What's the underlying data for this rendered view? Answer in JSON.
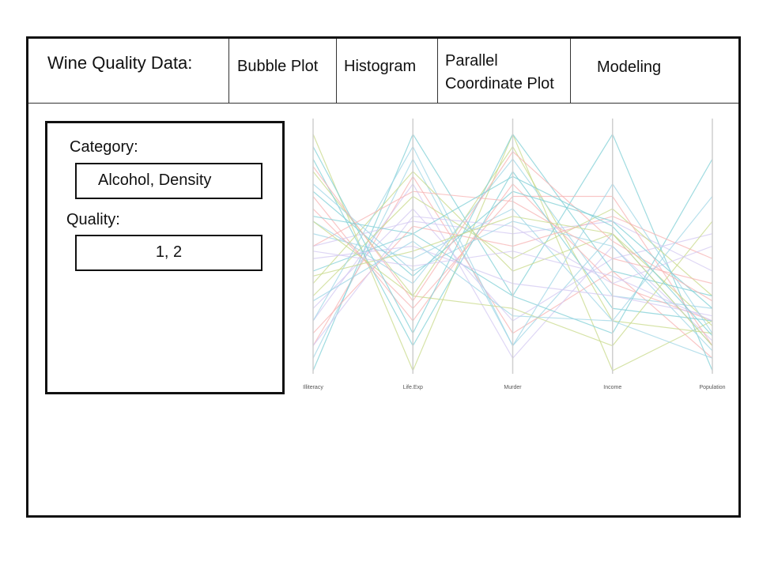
{
  "header": {
    "title": "Wine Quality Data:",
    "tabs": [
      {
        "label": "Bubble Plot"
      },
      {
        "label": "Histogram"
      },
      {
        "label": "Parallel Coordinate Plot"
      },
      {
        "label": "Modeling"
      }
    ]
  },
  "sidebar": {
    "category_label": "Category:",
    "category_value": "Alcohol, Density",
    "quality_label": "Quality:",
    "quality_value": "1, 2"
  },
  "chart_data": {
    "type": "line",
    "title": "",
    "axes": [
      "Illiteracy",
      "Life.Exp",
      "Murder",
      "Income",
      "Population"
    ],
    "value_range": [
      0,
      1
    ],
    "grid": false,
    "legend": "none",
    "colors": [
      "#c8d98a",
      "#9fd6e6",
      "#f7b3b3",
      "#d3c8f2",
      "#7fcfd6"
    ],
    "series": [
      {
        "values": [
          0.95,
          0.0,
          0.95,
          0.0,
          0.2
        ]
      },
      {
        "values": [
          0.05,
          0.85,
          0.1,
          0.55,
          0.1
        ]
      },
      {
        "values": [
          0.1,
          0.78,
          0.15,
          0.4,
          0.05
        ]
      },
      {
        "values": [
          0.2,
          0.75,
          0.05,
          0.5,
          0.12
        ]
      },
      {
        "values": [
          0.0,
          0.95,
          0.3,
          0.95,
          0.0
        ]
      },
      {
        "values": [
          0.8,
          0.3,
          0.9,
          0.2,
          0.15
        ]
      },
      {
        "values": [
          0.6,
          0.35,
          0.85,
          0.3,
          0.25
        ]
      },
      {
        "values": [
          0.7,
          0.2,
          0.75,
          0.35,
          0.2
        ]
      },
      {
        "values": [
          0.5,
          0.6,
          0.55,
          0.6,
          0.4
        ]
      },
      {
        "values": [
          0.4,
          0.55,
          0.3,
          0.15,
          0.85
        ]
      },
      {
        "values": [
          0.3,
          0.7,
          0.45,
          0.65,
          0.3
        ]
      },
      {
        "values": [
          0.55,
          0.45,
          0.65,
          0.2,
          0.05
        ]
      },
      {
        "values": [
          0.65,
          0.25,
          0.7,
          0.7,
          0.1
        ]
      },
      {
        "values": [
          0.25,
          0.65,
          0.2,
          0.45,
          0.55
        ]
      },
      {
        "values": [
          0.85,
          0.1,
          0.8,
          0.25,
          0.2
        ]
      },
      {
        "values": [
          0.35,
          0.8,
          0.4,
          0.55,
          0.18
        ]
      },
      {
        "values": [
          0.75,
          0.4,
          0.6,
          0.5,
          0.08
        ]
      },
      {
        "values": [
          0.15,
          0.58,
          0.5,
          0.62,
          0.45
        ]
      },
      {
        "values": [
          0.45,
          0.5,
          0.35,
          0.3,
          0.22
        ]
      },
      {
        "values": [
          0.9,
          0.15,
          0.95,
          0.4,
          0.3
        ]
      },
      {
        "values": [
          0.6,
          0.3,
          0.25,
          0.1,
          0.6
        ]
      },
      {
        "values": [
          0.2,
          0.9,
          0.1,
          0.75,
          0.15
        ]
      },
      {
        "values": [
          0.5,
          0.72,
          0.68,
          0.45,
          0.35
        ]
      },
      {
        "values": [
          0.1,
          0.62,
          0.58,
          0.35,
          0.5
        ]
      },
      {
        "values": [
          0.72,
          0.38,
          0.72,
          0.6,
          0.25
        ]
      },
      {
        "values": [
          0.38,
          0.48,
          0.62,
          0.55,
          0.1
        ]
      },
      {
        "values": [
          0.28,
          0.52,
          0.22,
          0.2,
          0.7
        ]
      },
      {
        "values": [
          0.82,
          0.28,
          0.88,
          0.52,
          0.28
        ]
      },
      {
        "values": [
          0.48,
          0.42,
          0.48,
          0.38,
          0.2
        ]
      },
      {
        "values": [
          0.62,
          0.55,
          0.78,
          0.58,
          0.14
        ]
      }
    ]
  }
}
